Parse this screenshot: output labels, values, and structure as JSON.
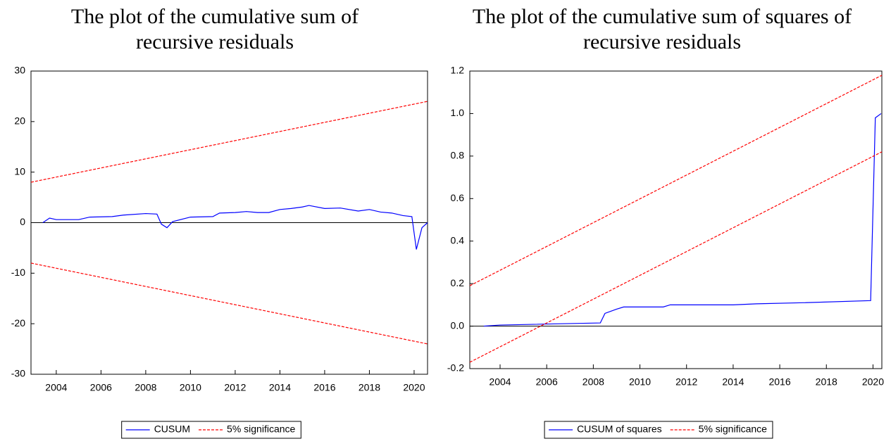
{
  "chart_data": [
    {
      "type": "line",
      "title": [
        "The plot of the cumulative sum of",
        "recursive residuals"
      ],
      "xlim": [
        2002.87,
        2020.6
      ],
      "xticks": [
        2004,
        2006,
        2008,
        2010,
        2012,
        2014,
        2016,
        2018,
        2020
      ],
      "ylim": [
        -30,
        30
      ],
      "yticks": [
        -30,
        -20,
        -10,
        0,
        10,
        20,
        30
      ],
      "legend": "bottom",
      "series": [
        {
          "name": "CUSUM",
          "color": "#0000ff",
          "dashed": false,
          "x": [
            2003.4,
            2003.7,
            2004.0,
            2005.0,
            2005.5,
            2006.5,
            2007.0,
            2008.0,
            2008.5,
            2008.7,
            2008.95,
            2009.2,
            2010.0,
            2011.0,
            2011.3,
            2012.0,
            2012.5,
            2013.0,
            2013.5,
            2014.0,
            2014.5,
            2015.0,
            2015.3,
            2016.0,
            2016.7,
            2017.5,
            2018.0,
            2018.5,
            2019.0,
            2019.5,
            2019.9,
            2020.1,
            2020.35,
            2020.6
          ],
          "values": [
            0,
            0.9,
            0.6,
            0.6,
            1.1,
            1.2,
            1.5,
            1.8,
            1.7,
            -0.3,
            -1,
            0.2,
            1.1,
            1.2,
            1.9,
            2.0,
            2.2,
            2.0,
            2.0,
            2.6,
            2.8,
            3.1,
            3.4,
            2.8,
            2.9,
            2.3,
            2.6,
            2.1,
            1.9,
            1.4,
            1.2,
            -5.3,
            -1,
            0
          ]
        },
        {
          "name": "5% significance",
          "color": "#ff0000",
          "dashed": true,
          "x": [
            2002.87,
            2020.6
          ],
          "values": [
            8,
            24
          ]
        },
        {
          "name": null,
          "color": "#ff0000",
          "dashed": true,
          "x": [
            2002.87,
            2020.6
          ],
          "values": [
            -8,
            -24
          ]
        }
      ]
    },
    {
      "type": "line",
      "title": [
        "The plot of the cumulative sum of squares of",
        "recursive residuals"
      ],
      "xlim": [
        2002.7,
        2020.38
      ],
      "xticks": [
        2004,
        2006,
        2008,
        2010,
        2012,
        2014,
        2016,
        2018,
        2020
      ],
      "ylim": [
        -0.2,
        1.2
      ],
      "yticks": [
        -0.2,
        {
          "value": 0,
          "label": "0.0"
        },
        0.2,
        0.4,
        0.6,
        0.8,
        {
          "value": 1,
          "label": "1.0"
        },
        1.2
      ],
      "legend": "bottom",
      "series": [
        {
          "name": "CUSUM of squares",
          "color": "#0000ff",
          "dashed": false,
          "x": [
            2003.3,
            2004.0,
            2008.3,
            2008.5,
            2009.0,
            2009.3,
            2011.0,
            2011.3,
            2014.0,
            2015.0,
            2017.0,
            2019.9,
            2020.1,
            2020.35
          ],
          "values": [
            0,
            0.005,
            0.015,
            0.06,
            0.08,
            0.09,
            0.09,
            0.1,
            0.1,
            0.105,
            0.11,
            0.12,
            0.98,
            1.0
          ]
        },
        {
          "name": "5% significance",
          "color": "#ff0000",
          "dashed": true,
          "x": [
            2002.7,
            2020.38
          ],
          "values": [
            0.19,
            1.18
          ]
        },
        {
          "name": null,
          "color": "#ff0000",
          "dashed": true,
          "x": [
            2002.7,
            2020.38
          ],
          "values": [
            -0.17,
            0.82
          ]
        }
      ]
    }
  ]
}
